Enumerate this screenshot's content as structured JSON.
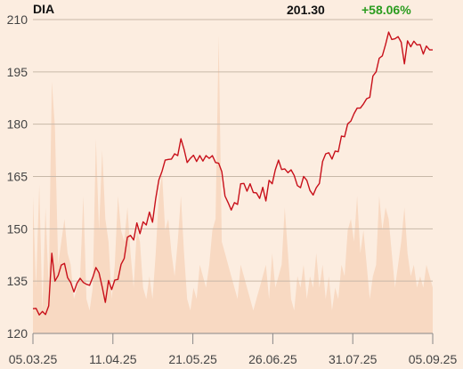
{
  "header": {
    "ticker": "DIA",
    "price": "201.30",
    "change": "+58.06%"
  },
  "colors": {
    "line": "#c8101a",
    "volume": "#f8d9c2",
    "grid": "#c8b8a8",
    "positive": "#2a9c1e",
    "background": "#fcede0"
  },
  "chart_data": {
    "type": "line",
    "title": "",
    "xlabel": "",
    "ylabel": "",
    "ylim": [
      120,
      210
    ],
    "yticks": [
      120,
      135,
      150,
      165,
      180,
      195,
      210
    ],
    "xtick_labels": [
      "05.03.25",
      "11.04.25",
      "21.05.25",
      "26.06.25",
      "31.07.25",
      "05.09.25"
    ],
    "grid": true,
    "series": [
      {
        "values": [
          127.1,
          127.2,
          125.3,
          126.3,
          125.4,
          127.9,
          143.0,
          135.0,
          136.6,
          139.6,
          140.1,
          136.0,
          134.6,
          131.9,
          134.4,
          135.8,
          134.6,
          134.1,
          133.8,
          136.1,
          138.9,
          137.4,
          133.3,
          128.9,
          135.2,
          132.6,
          135.3,
          135.5,
          139.8,
          141.5,
          147.6,
          148.1,
          146.8,
          151.7,
          148.6,
          152.0,
          151.1,
          154.8,
          151.9,
          158.7,
          164.0,
          166.5,
          169.7,
          169.9,
          170.0,
          171.5,
          171.0,
          175.8,
          172.8,
          169.0,
          170.2,
          171.1,
          169.3,
          171.0,
          169.4,
          171.0,
          170.2,
          171.0,
          169.0,
          168.8,
          166.4,
          159.4,
          157.5,
          155.4,
          157.5,
          157.0,
          162.9,
          163.0,
          160.8,
          162.9,
          160.4,
          160.3,
          158.7,
          161.9,
          158.0,
          163.9,
          162.9,
          166.9,
          169.7,
          167.0,
          167.2,
          166.1,
          166.9,
          165.3,
          162.4,
          161.8,
          165.0,
          163.9,
          161.0,
          159.7,
          161.8,
          163.0,
          169.3,
          171.5,
          171.8,
          170.0,
          172.3,
          172.1,
          176.6,
          176.4,
          180.1,
          180.9,
          183.0,
          184.6,
          184.6,
          185.8,
          187.3,
          187.7,
          193.8,
          195.0,
          198.9,
          199.6,
          202.8,
          206.4,
          204.3,
          204.5,
          205.1,
          203.5,
          197.3,
          203.9,
          202.2,
          203.8,
          202.7,
          202.8,
          200.1,
          202.4,
          201.3,
          201.3
        ]
      }
    ],
    "volume": [
      12,
      4,
      13,
      2,
      11,
      4,
      22,
      18,
      6,
      8,
      10,
      7,
      6,
      3,
      4,
      5,
      12,
      3,
      2,
      4,
      17,
      9,
      16,
      10,
      8,
      3,
      6,
      12,
      9,
      8,
      11,
      7,
      4,
      9,
      8,
      4,
      3,
      5,
      3,
      7,
      12,
      14,
      9,
      10,
      7,
      5,
      8,
      12,
      7,
      3,
      2,
      4,
      3,
      6,
      5,
      4,
      6,
      9,
      10,
      26,
      8,
      7,
      6,
      5,
      4,
      3,
      6,
      5,
      4,
      3,
      2,
      3,
      4,
      5,
      6,
      3,
      7,
      4,
      5,
      6,
      11,
      7,
      3,
      2,
      5,
      4,
      6,
      3,
      5,
      4,
      7,
      4,
      6,
      3,
      5,
      2,
      4,
      3,
      6,
      5,
      9,
      10,
      8,
      12,
      7,
      9,
      6,
      3,
      5,
      6,
      12,
      9,
      11,
      10,
      7,
      4,
      6,
      8,
      11,
      7,
      5,
      6,
      4,
      5,
      4,
      6,
      5,
      4
    ]
  }
}
